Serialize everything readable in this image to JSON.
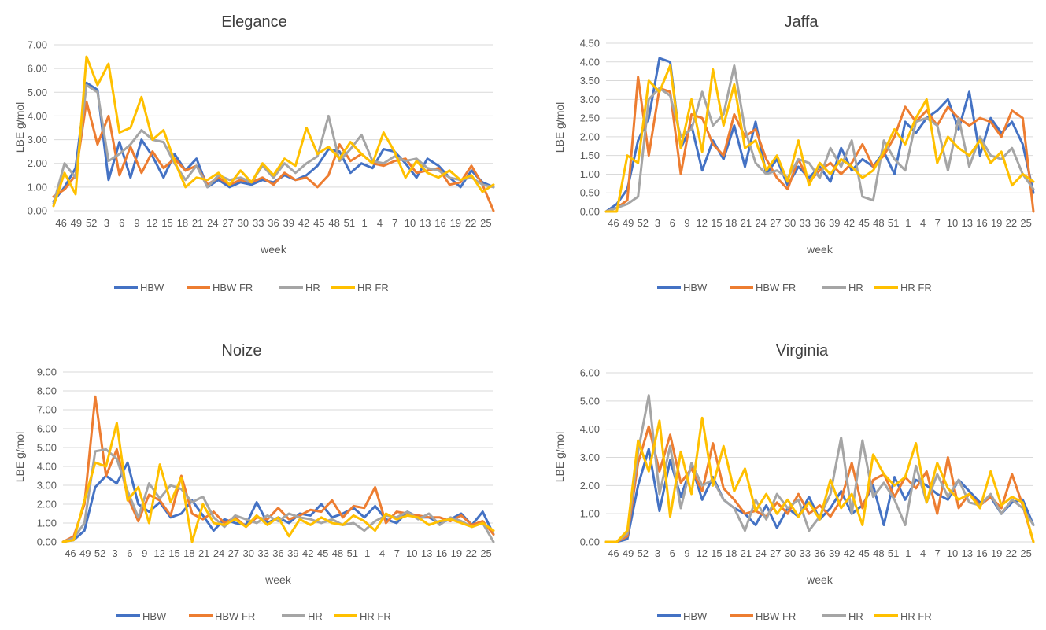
{
  "chart_data": [
    {
      "type": "line",
      "title": "Elegance",
      "xlabel": "week",
      "ylabel": "LBE g/mol",
      "ylim": [
        0,
        7
      ],
      "ytick_step": 1,
      "grid": true,
      "legend_position": "bottom",
      "xtick_labels": [
        "46",
        "49",
        "52",
        "3",
        "6",
        "9",
        "12",
        "15",
        "18",
        "21",
        "24",
        "27",
        "30",
        "33",
        "36",
        "39",
        "42",
        "45",
        "48",
        "51",
        "1",
        "4",
        "7",
        "10",
        "13",
        "16",
        "19",
        "22",
        "25"
      ],
      "series": [
        {
          "name": "HBW",
          "color": "#4472C4",
          "values": [
            0.4,
            1.0,
            1.8,
            5.4,
            5.1,
            1.3,
            2.9,
            1.4,
            3.0,
            2.3,
            1.4,
            2.4,
            1.7,
            2.2,
            1.0,
            1.3,
            1.0,
            1.2,
            1.1,
            1.3,
            1.2,
            1.5,
            1.3,
            1.5,
            1.9,
            2.6,
            2.5,
            1.6,
            2.0,
            1.8,
            2.6,
            2.5,
            2.0,
            1.4,
            2.2,
            1.9,
            1.4,
            1.0,
            1.7,
            1.2,
            1.0
          ]
        },
        {
          "name": "HBW FR",
          "color": "#ED7D31",
          "values": [
            0.6,
            0.9,
            1.5,
            4.6,
            2.8,
            4.0,
            1.5,
            2.7,
            1.6,
            2.5,
            1.8,
            2.2,
            1.7,
            1.9,
            1.1,
            1.4,
            1.1,
            1.3,
            1.2,
            1.4,
            1.1,
            1.6,
            1.3,
            1.4,
            1.0,
            1.5,
            2.8,
            2.1,
            2.4,
            2.0,
            1.9,
            2.1,
            2.2,
            1.6,
            1.7,
            1.8,
            1.1,
            1.2,
            1.9,
            1.1,
            0.0
          ]
        },
        {
          "name": "HR",
          "color": "#A5A5A5",
          "values": [
            0.3,
            2.0,
            1.4,
            5.3,
            5.0,
            2.1,
            2.4,
            2.8,
            3.4,
            3.0,
            2.9,
            2.0,
            1.3,
            1.9,
            1.0,
            1.5,
            1.3,
            1.4,
            1.2,
            1.9,
            1.4,
            2.0,
            1.6,
            2.0,
            2.3,
            4.0,
            2.1,
            2.6,
            3.2,
            2.1,
            2.0,
            2.3,
            2.1,
            2.2,
            1.8,
            1.7,
            1.4,
            1.3,
            1.4,
            1.1,
            1.0
          ]
        },
        {
          "name": "HR FR",
          "color": "#FFC000",
          "values": [
            0.2,
            1.6,
            0.7,
            6.5,
            5.3,
            6.2,
            3.3,
            3.5,
            4.8,
            3.0,
            3.4,
            2.1,
            1.0,
            1.4,
            1.3,
            1.6,
            1.1,
            1.7,
            1.2,
            2.0,
            1.5,
            2.2,
            1.9,
            3.5,
            2.4,
            2.7,
            2.2,
            2.9,
            2.4,
            2.0,
            3.3,
            2.5,
            1.4,
            2.1,
            1.6,
            1.4,
            1.7,
            1.3,
            1.5,
            0.8,
            1.1
          ]
        }
      ]
    },
    {
      "type": "line",
      "title": "Jaffa",
      "xlabel": "week",
      "ylabel": "LBE g/mol",
      "ylim": [
        0,
        4.5
      ],
      "ytick_step": 0.5,
      "grid": true,
      "legend_position": "bottom",
      "xtick_labels": [
        "46",
        "49",
        "52",
        "3",
        "6",
        "9",
        "12",
        "15",
        "18",
        "21",
        "24",
        "27",
        "30",
        "33",
        "36",
        "39",
        "42",
        "45",
        "48",
        "51",
        "1",
        "4",
        "7",
        "10",
        "13",
        "16",
        "19",
        "22",
        "25"
      ],
      "series": [
        {
          "name": "HBW",
          "color": "#4472C4",
          "values": [
            0.0,
            0.2,
            0.6,
            1.9,
            2.5,
            4.1,
            4.0,
            1.7,
            2.3,
            1.1,
            1.9,
            1.4,
            2.3,
            1.2,
            2.4,
            1.0,
            1.4,
            0.7,
            1.2,
            0.9,
            1.2,
            0.8,
            1.7,
            1.1,
            1.4,
            1.2,
            1.6,
            1.0,
            2.4,
            2.1,
            2.5,
            2.7,
            3.0,
            2.2,
            3.2,
            1.5,
            2.5,
            2.1,
            2.4,
            1.8,
            0.5
          ]
        },
        {
          "name": "HBW FR",
          "color": "#ED7D31",
          "values": [
            0.0,
            0.1,
            0.3,
            3.6,
            1.5,
            3.3,
            3.2,
            1.0,
            2.6,
            2.5,
            1.8,
            1.5,
            2.6,
            2.0,
            2.2,
            1.4,
            0.9,
            0.6,
            1.4,
            0.8,
            1.1,
            1.3,
            1.0,
            1.3,
            1.8,
            1.2,
            1.5,
            2.0,
            2.8,
            2.4,
            2.7,
            2.3,
            2.8,
            2.5,
            2.3,
            2.5,
            2.4,
            2.0,
            2.7,
            2.5,
            0.0
          ]
        },
        {
          "name": "HR",
          "color": "#A5A5A5",
          "values": [
            0.0,
            0.1,
            0.2,
            0.4,
            3.0,
            3.3,
            3.1,
            2.0,
            2.2,
            3.2,
            2.3,
            2.6,
            3.9,
            2.2,
            1.3,
            1.0,
            1.1,
            0.9,
            1.4,
            1.3,
            0.9,
            1.7,
            1.2,
            1.9,
            0.4,
            0.3,
            1.9,
            1.4,
            1.1,
            2.4,
            2.5,
            2.3,
            1.1,
            2.5,
            1.2,
            2.0,
            1.5,
            1.4,
            1.7,
            1.0,
            0.6
          ]
        },
        {
          "name": "HR FR",
          "color": "#FFC000",
          "values": [
            0.0,
            0.0,
            1.5,
            1.3,
            3.5,
            3.2,
            3.9,
            1.7,
            3.0,
            1.6,
            3.8,
            2.3,
            3.4,
            1.7,
            1.9,
            1.1,
            1.5,
            0.8,
            1.9,
            0.7,
            1.3,
            1.0,
            1.4,
            1.2,
            0.9,
            1.1,
            1.6,
            2.2,
            1.8,
            2.5,
            3.0,
            1.3,
            2.0,
            1.7,
            1.5,
            1.9,
            1.3,
            1.6,
            0.7,
            1.0,
            0.8
          ]
        }
      ]
    },
    {
      "type": "line",
      "title": "Noize",
      "xlabel": "week",
      "ylabel": "LBE g/mol",
      "ylim": [
        0,
        9
      ],
      "ytick_step": 1,
      "grid": true,
      "legend_position": "bottom",
      "xtick_labels": [
        "46",
        "49",
        "52",
        "3",
        "6",
        "9",
        "12",
        "15",
        "18",
        "21",
        "24",
        "27",
        "30",
        "33",
        "36",
        "39",
        "42",
        "45",
        "48",
        "51",
        "1",
        "4",
        "7",
        "10",
        "13",
        "16",
        "19",
        "22",
        "25"
      ],
      "series": [
        {
          "name": "HBW",
          "color": "#4472C4",
          "values": [
            0.0,
            0.1,
            0.6,
            2.9,
            3.5,
            3.1,
            4.2,
            2.0,
            1.6,
            2.1,
            1.3,
            1.5,
            2.2,
            1.4,
            0.6,
            1.2,
            1.0,
            0.9,
            2.1,
            1.0,
            1.3,
            1.0,
            1.5,
            1.4,
            2.0,
            1.3,
            1.5,
            1.8,
            1.3,
            1.9,
            1.2,
            1.0,
            1.6,
            1.3,
            1.3,
            1.0,
            1.2,
            1.5,
            0.9,
            1.6,
            0.4
          ]
        },
        {
          "name": "HBW FR",
          "color": "#ED7D31",
          "values": [
            0.0,
            0.3,
            2.0,
            7.7,
            3.5,
            4.9,
            2.4,
            1.1,
            2.5,
            2.2,
            1.4,
            3.5,
            1.5,
            1.2,
            1.6,
            1.0,
            1.3,
            0.8,
            1.3,
            1.2,
            1.8,
            1.2,
            1.4,
            1.7,
            1.6,
            2.2,
            1.3,
            1.9,
            1.8,
            2.9,
            1.0,
            1.6,
            1.5,
            1.4,
            1.3,
            1.3,
            1.1,
            1.4,
            0.9,
            1.1,
            0.4
          ]
        },
        {
          "name": "HR",
          "color": "#A5A5A5",
          "values": [
            0.0,
            0.2,
            1.0,
            4.8,
            4.9,
            4.4,
            2.7,
            1.3,
            3.1,
            2.3,
            3.0,
            2.8,
            2.1,
            2.4,
            1.3,
            0.8,
            1.4,
            1.2,
            1.0,
            1.4,
            1.1,
            1.5,
            1.3,
            1.2,
            1.0,
            1.2,
            0.9,
            1.0,
            0.6,
            1.1,
            1.4,
            1.3,
            1.6,
            1.2,
            1.5,
            0.9,
            1.3,
            1.1,
            0.8,
            1.0,
            0.0
          ]
        },
        {
          "name": "HR FR",
          "color": "#FFC000",
          "values": [
            0.0,
            0.1,
            2.2,
            4.2,
            4.0,
            6.3,
            2.2,
            2.9,
            1.0,
            4.1,
            2.1,
            3.4,
            0.0,
            2.0,
            1.0,
            0.9,
            1.2,
            0.8,
            1.4,
            0.9,
            1.3,
            0.3,
            1.2,
            0.9,
            1.3,
            1.0,
            0.9,
            1.4,
            1.1,
            0.6,
            1.5,
            1.2,
            1.4,
            1.3,
            0.9,
            1.1,
            1.2,
            1.0,
            0.8,
            1.0,
            0.6
          ]
        }
      ]
    },
    {
      "type": "line",
      "title": "Virginia",
      "xlabel": "week",
      "ylabel": "LBE g/mol",
      "ylim": [
        0,
        6
      ],
      "ytick_step": 1,
      "grid": true,
      "legend_position": "bottom",
      "xtick_labels": [
        "46",
        "49",
        "52",
        "3",
        "6",
        "9",
        "12",
        "15",
        "18",
        "21",
        "24",
        "27",
        "30",
        "33",
        "36",
        "39",
        "42",
        "45",
        "48",
        "51",
        "1",
        "4",
        "7",
        "10",
        "13",
        "16",
        "19",
        "22",
        "25"
      ],
      "series": [
        {
          "name": "HBW",
          "color": "#4472C4",
          "values": [
            0.0,
            0.0,
            0.1,
            2.0,
            3.3,
            1.1,
            2.9,
            1.6,
            2.7,
            1.5,
            2.3,
            1.5,
            1.2,
            1.0,
            0.6,
            1.3,
            0.5,
            1.2,
            0.9,
            1.6,
            0.8,
            1.2,
            1.8,
            1.0,
            1.3,
            2.0,
            0.6,
            2.3,
            1.5,
            2.2,
            2.0,
            1.7,
            1.5,
            2.2,
            1.8,
            1.4,
            1.6,
            1.0,
            1.4,
            1.5,
            0.6
          ]
        },
        {
          "name": "HBW FR",
          "color": "#ED7D31",
          "values": [
            0.0,
            0.0,
            0.2,
            2.8,
            4.1,
            2.5,
            3.8,
            2.1,
            2.6,
            1.8,
            3.5,
            1.9,
            1.5,
            1.0,
            1.1,
            0.9,
            1.4,
            1.0,
            1.7,
            1.0,
            1.3,
            0.9,
            1.5,
            2.8,
            1.2,
            2.2,
            2.4,
            1.6,
            2.3,
            1.9,
            2.5,
            1.0,
            3.0,
            1.2,
            1.7,
            1.3,
            1.6,
            1.2,
            2.4,
            1.3,
            0.0
          ]
        },
        {
          "name": "HR",
          "color": "#A5A5A5",
          "values": [
            0.0,
            0.0,
            0.3,
            3.2,
            5.2,
            1.7,
            3.4,
            1.2,
            2.8,
            2.0,
            2.2,
            1.5,
            1.2,
            0.4,
            1.5,
            0.8,
            1.7,
            1.2,
            1.5,
            0.4,
            0.9,
            1.7,
            3.7,
            1.0,
            3.6,
            1.6,
            2.1,
            1.5,
            0.6,
            2.7,
            1.4,
            2.4,
            1.6,
            2.2,
            1.4,
            1.3,
            1.7,
            1.0,
            1.5,
            1.2,
            0.6
          ]
        },
        {
          "name": "HR FR",
          "color": "#FFC000",
          "values": [
            0.0,
            0.0,
            0.4,
            3.6,
            2.5,
            4.3,
            0.9,
            3.2,
            1.7,
            4.4,
            2.0,
            3.4,
            1.8,
            2.6,
            1.1,
            1.7,
            1.0,
            1.5,
            0.9,
            1.4,
            0.8,
            2.2,
            1.2,
            1.7,
            0.6,
            3.1,
            2.4,
            2.0,
            2.3,
            3.5,
            1.4,
            2.8,
            1.9,
            1.5,
            1.7,
            1.2,
            2.5,
            1.3,
            1.6,
            1.4,
            0.0
          ]
        }
      ]
    }
  ]
}
